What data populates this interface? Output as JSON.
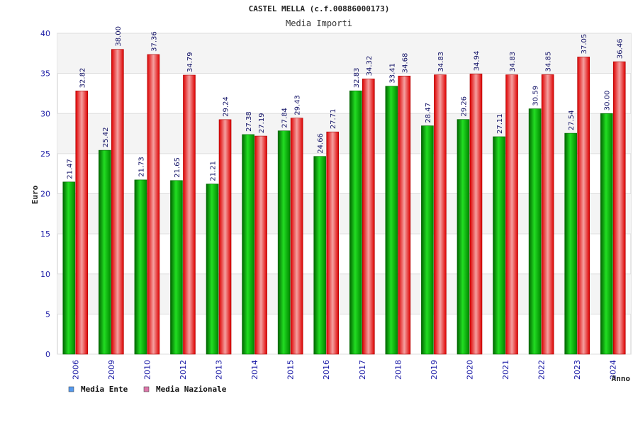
{
  "chart_data": {
    "type": "bar",
    "title": "CASTEL MELLA (c.f.00886000173)",
    "subtitle": "Media Importi",
    "xlabel": "Anno",
    "ylabel": "Euro",
    "ylim": [
      0,
      40
    ],
    "yticks": [
      "0",
      "5",
      "10",
      "15",
      "20",
      "25",
      "30",
      "35",
      "40"
    ],
    "grid": true,
    "legend_position": "bottom-left",
    "categories": [
      "2006",
      "2009",
      "2010",
      "2012",
      "2013",
      "2014",
      "2015",
      "2016",
      "2017",
      "2018",
      "2019",
      "2020",
      "2021",
      "2022",
      "2023",
      "2024"
    ],
    "series": [
      {
        "name": "Media Ente",
        "values": [
          21.47,
          25.42,
          21.73,
          21.65,
          21.21,
          27.38,
          27.84,
          24.66,
          32.83,
          33.41,
          28.47,
          29.26,
          27.11,
          30.59,
          27.54,
          30.0
        ],
        "labels": [
          "21.47",
          "25.42",
          "21.73",
          "21.65",
          "21.21",
          "27.38",
          "27.84",
          "24.66",
          "32.83",
          "33.41",
          "28.47",
          "29.26",
          "27.11",
          "30.59",
          "27.54",
          "30.00"
        ]
      },
      {
        "name": "Media Nazionale",
        "values": [
          32.82,
          38.0,
          37.36,
          34.79,
          29.24,
          27.19,
          29.43,
          27.71,
          34.32,
          34.68,
          34.83,
          34.94,
          34.83,
          34.85,
          37.05,
          36.46
        ],
        "labels": [
          "32.82",
          "38.00",
          "37.36",
          "34.79",
          "29.24",
          "27.19",
          "29.43",
          "27.71",
          "34.32",
          "34.68",
          "34.83",
          "34.94",
          "34.83",
          "34.85",
          "37.05",
          "36.46"
        ]
      }
    ]
  },
  "colors": {
    "ente_bar": "#00aa00",
    "nazionale_bar": "#ee1111",
    "ente_legend": "#5599ee",
    "nazionale_legend": "#dd77aa"
  }
}
